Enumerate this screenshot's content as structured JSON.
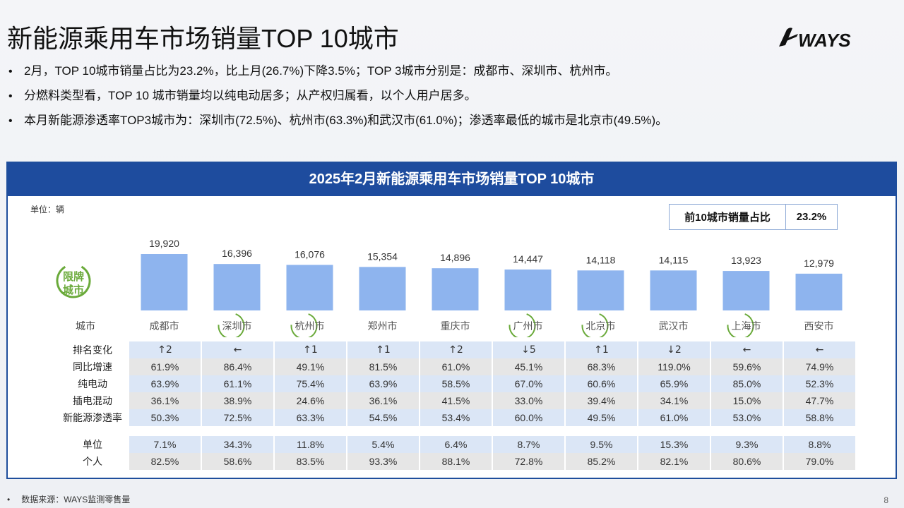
{
  "title": "新能源乘用车市场销量TOP 10城市",
  "logo_text": "WAYS",
  "bullets": [
    "2月，TOP 10城市销量占比为23.2%，比上月(26.7%)下降3.5%；TOP 3城市分别是：成都市、深圳市、杭州市。",
    "分燃料类型看，TOP 10 城市销量均以纯电动居多；从产权归属看，以个人用户居多。",
    "本月新能源渗透率TOP3城市为：深圳市(72.5%)、杭州市(63.3%)和武汉市(61.0%)；渗透率最低的城市是北京市(49.5%)。"
  ],
  "panel_title": "2025年2月新能源乘用车市场销量TOP 10城市",
  "unit_label": "单位：辆",
  "share": {
    "label": "前10城市销量占比",
    "value": "23.2%"
  },
  "badge_lines": [
    "限牌",
    "城市"
  ],
  "city_header": "城市",
  "colors": {
    "bar": "#8eb4ee",
    "header_bg": "#1e4c9e",
    "badge": "#6aaa3a",
    "row_blue": "#dbe6f6",
    "row_gray": "#e6e6e6"
  },
  "chart_data": {
    "type": "bar",
    "categories": [
      "成都市",
      "深圳市",
      "杭州市",
      "郑州市",
      "重庆市",
      "广州市",
      "北京市",
      "武汉市",
      "上海市",
      "西安市"
    ],
    "values": [
      19920,
      16396,
      16076,
      15354,
      14896,
      14447,
      14118,
      14115,
      13923,
      12979
    ],
    "value_labels": [
      "19,920",
      "16,396",
      "16,076",
      "15,354",
      "14,896",
      "14,447",
      "14,118",
      "14,115",
      "13,923",
      "12,979"
    ],
    "restricted": [
      false,
      true,
      true,
      false,
      false,
      true,
      true,
      false,
      true,
      false
    ],
    "ylabel": "",
    "unit": "辆"
  },
  "table": {
    "rows": [
      {
        "label": "排名变化",
        "style": "blue",
        "cells": [
          "↑2",
          "←",
          "↑1",
          "↑1",
          "↑2",
          "↓5",
          "↑1",
          "↓2",
          "←",
          "←"
        ]
      },
      {
        "label": "同比增速",
        "style": "gray",
        "cells": [
          "61.9%",
          "86.4%",
          "49.1%",
          "81.5%",
          "61.0%",
          "45.1%",
          "68.3%",
          "119.0%",
          "59.6%",
          "74.9%"
        ]
      },
      {
        "label": "纯电动",
        "style": "blue",
        "cells": [
          "63.9%",
          "61.1%",
          "75.4%",
          "63.9%",
          "58.5%",
          "67.0%",
          "60.6%",
          "65.9%",
          "85.0%",
          "52.3%"
        ]
      },
      {
        "label": "插电混动",
        "style": "gray",
        "cells": [
          "36.1%",
          "38.9%",
          "24.6%",
          "36.1%",
          "41.5%",
          "33.0%",
          "39.4%",
          "34.1%",
          "15.0%",
          "47.7%"
        ]
      },
      {
        "label": "新能源渗透率",
        "style": "blue",
        "cells": [
          "50.3%",
          "72.5%",
          "63.3%",
          "54.5%",
          "53.4%",
          "60.0%",
          "49.5%",
          "61.0%",
          "53.0%",
          "58.8%"
        ]
      },
      {
        "label": "单位",
        "style": "blue",
        "cells": [
          "7.1%",
          "34.3%",
          "11.8%",
          "5.4%",
          "6.4%",
          "8.7%",
          "9.5%",
          "15.3%",
          "9.3%",
          "8.8%"
        ]
      },
      {
        "label": "个人",
        "style": "gray",
        "cells": [
          "82.5%",
          "58.6%",
          "83.5%",
          "93.3%",
          "88.1%",
          "72.8%",
          "85.2%",
          "82.1%",
          "80.6%",
          "79.0%"
        ]
      }
    ]
  },
  "footer": "数据来源：WAYS监测零售量",
  "page_number": "8"
}
